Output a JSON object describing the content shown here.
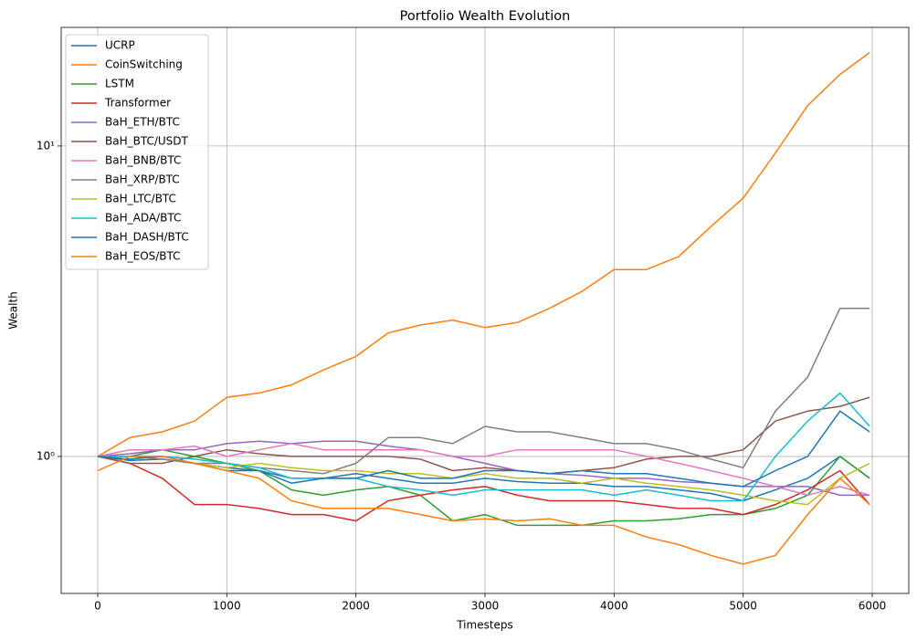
{
  "chart_data": {
    "type": "line",
    "title": "Portfolio Wealth Evolution",
    "x_label": "Timesteps",
    "y_label": "Wealth",
    "log_y": true,
    "grid": true,
    "legend_position": "upper left",
    "xlim": [
      -283,
      6283
    ],
    "xticks": [
      0,
      1000,
      2000,
      3000,
      4000,
      5000,
      6000
    ],
    "ylim": [
      0.362,
      24.1
    ],
    "yticks": [
      {
        "value": 1,
        "label": "10⁰"
      },
      {
        "value": 10,
        "label": "10¹"
      }
    ],
    "x": [
      0,
      250,
      500,
      750,
      1000,
      1250,
      1500,
      1750,
      2000,
      2250,
      2500,
      2750,
      3000,
      3250,
      3500,
      3750,
      4000,
      4250,
      4500,
      4750,
      5000,
      5250,
      5500,
      5750,
      5980
    ],
    "series": [
      {
        "name": "UCRP",
        "color": "#1f77b4",
        "values": [
          1.0,
          0.97,
          0.98,
          0.95,
          0.92,
          0.9,
          0.85,
          0.85,
          0.88,
          0.85,
          0.82,
          0.82,
          0.85,
          0.83,
          0.82,
          0.82,
          0.8,
          0.8,
          0.78,
          0.76,
          0.72,
          0.78,
          0.85,
          1.0,
          0.85
        ]
      },
      {
        "name": "CoinSwitching",
        "color": "#ff7f0e",
        "values": [
          1.0,
          1.15,
          1.2,
          1.3,
          1.55,
          1.6,
          1.7,
          1.9,
          2.1,
          2.5,
          2.65,
          2.75,
          2.6,
          2.7,
          3.0,
          3.4,
          4.0,
          4.0,
          4.4,
          5.5,
          6.8,
          9.5,
          13.5,
          17,
          20
        ]
      },
      {
        "name": "LSTM",
        "color": "#2ca02c",
        "values": [
          1.0,
          1.0,
          1.05,
          1.0,
          0.95,
          0.9,
          0.78,
          0.75,
          0.78,
          0.8,
          0.75,
          0.62,
          0.65,
          0.6,
          0.6,
          0.6,
          0.62,
          0.62,
          0.63,
          0.65,
          0.65,
          0.68,
          0.75,
          1.0,
          0.85
        ]
      },
      {
        "name": "Transformer",
        "color": "#d62728",
        "values": [
          1.0,
          0.95,
          0.85,
          0.7,
          0.7,
          0.68,
          0.65,
          0.65,
          0.62,
          0.72,
          0.75,
          0.78,
          0.8,
          0.75,
          0.72,
          0.72,
          0.72,
          0.7,
          0.68,
          0.68,
          0.65,
          0.7,
          0.78,
          0.9,
          0.7
        ]
      },
      {
        "name": "BaH_ETH/BTC",
        "color": "#9467bd",
        "values": [
          1.0,
          1.02,
          1.05,
          1.05,
          1.1,
          1.12,
          1.1,
          1.12,
          1.12,
          1.08,
          1.05,
          1.0,
          0.95,
          0.9,
          0.88,
          0.87,
          0.85,
          0.85,
          0.83,
          0.82,
          0.8,
          0.8,
          0.8,
          0.75,
          0.75
        ]
      },
      {
        "name": "BaH_BTC/USDT",
        "color": "#8c564b",
        "values": [
          1.0,
          0.95,
          0.95,
          1.0,
          1.05,
          1.02,
          1.0,
          1.0,
          1.0,
          1.0,
          0.98,
          0.9,
          0.92,
          0.9,
          0.88,
          0.9,
          0.92,
          0.98,
          1.0,
          1.0,
          1.05,
          1.3,
          1.4,
          1.45,
          1.55
        ]
      },
      {
        "name": "BaH_BNB/BTC",
        "color": "#e377c2",
        "values": [
          1.0,
          1.05,
          1.05,
          1.08,
          1.0,
          1.05,
          1.1,
          1.05,
          1.05,
          1.05,
          1.05,
          1.0,
          1.0,
          1.05,
          1.05,
          1.05,
          1.05,
          1.0,
          0.95,
          0.9,
          0.85,
          0.8,
          0.75,
          0.8,
          0.75
        ]
      },
      {
        "name": "BaH_XRP/BTC",
        "color": "#7f7f7f",
        "values": [
          1.0,
          1.0,
          0.98,
          0.95,
          0.95,
          0.92,
          0.9,
          0.88,
          0.95,
          1.15,
          1.15,
          1.1,
          1.25,
          1.2,
          1.2,
          1.15,
          1.1,
          1.1,
          1.05,
          0.98,
          0.92,
          1.4,
          1.8,
          3.0,
          3.0
        ]
      },
      {
        "name": "BaH_LTC/BTC",
        "color": "#bcbd22",
        "values": [
          1.0,
          1.0,
          1.0,
          0.95,
          0.92,
          0.95,
          0.92,
          0.9,
          0.9,
          0.88,
          0.88,
          0.85,
          0.88,
          0.85,
          0.85,
          0.82,
          0.85,
          0.82,
          0.8,
          0.78,
          0.75,
          0.72,
          0.7,
          0.85,
          0.95
        ]
      },
      {
        "name": "BaH_ADA/BTC",
        "color": "#17becf",
        "values": [
          1.0,
          1.0,
          1.0,
          0.98,
          0.95,
          0.92,
          0.85,
          0.85,
          0.85,
          0.8,
          0.78,
          0.75,
          0.78,
          0.78,
          0.78,
          0.78,
          0.75,
          0.78,
          0.75,
          0.72,
          0.72,
          1.0,
          1.3,
          1.6,
          1.25
        ]
      },
      {
        "name": "BaH_DASH/BTC",
        "color": "#1f77b4",
        "values": [
          1.0,
          0.98,
          1.0,
          0.95,
          0.9,
          0.9,
          0.82,
          0.85,
          0.85,
          0.9,
          0.85,
          0.85,
          0.9,
          0.9,
          0.88,
          0.9,
          0.88,
          0.88,
          0.85,
          0.82,
          0.8,
          0.9,
          1.0,
          1.4,
          1.2
        ]
      },
      {
        "name": "BaH_EOS/BTC",
        "color": "#ff7f0e",
        "values": [
          0.9,
          1.0,
          1.0,
          0.95,
          0.9,
          0.85,
          0.72,
          0.68,
          0.68,
          0.68,
          0.65,
          0.62,
          0.63,
          0.62,
          0.63,
          0.6,
          0.6,
          0.55,
          0.52,
          0.48,
          0.45,
          0.48,
          0.65,
          0.85,
          0.7
        ]
      }
    ]
  }
}
